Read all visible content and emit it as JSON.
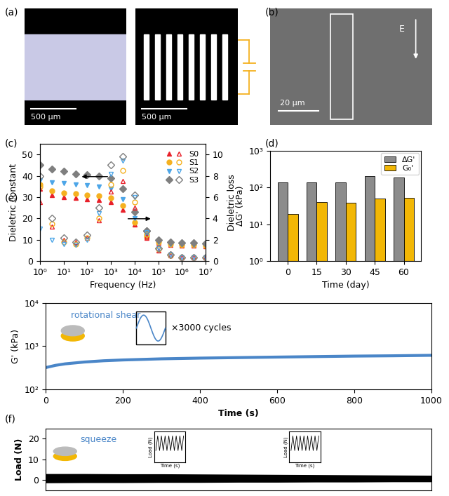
{
  "chart_data": [
    {
      "type": "image",
      "panel": "(a)",
      "scale_bars": [
        "500 μm",
        "500 μm"
      ]
    },
    {
      "type": "image",
      "panel": "(b)",
      "scale_bar": "20 μm",
      "field_label": "E"
    },
    {
      "type": "line",
      "panel": "(c)",
      "xlabel": "Frequency (Hz)",
      "ylabel": "Dieletric constant",
      "y2label": "Dieletric loss",
      "log": "x",
      "legend": "upper right",
      "x": [
        1,
        3.16,
        10,
        31.6,
        100,
        316,
        1000,
        3160,
        10000,
        31600,
        100000,
        316000,
        1000000,
        3160000,
        10000000
      ],
      "xlim": [
        1,
        10000000
      ],
      "xticks": [
        {
          "value": 1,
          "label": "10⁰"
        },
        {
          "value": 10,
          "label": "10¹"
        },
        {
          "value": 100,
          "label": "10²"
        },
        {
          "value": 1000,
          "label": "10³"
        },
        {
          "value": 10000,
          "label": "10⁴"
        },
        {
          "value": 100000,
          "label": "10⁵"
        },
        {
          "value": 1000000,
          "label": "10⁶"
        },
        {
          "value": 10000000,
          "label": "10⁷"
        }
      ],
      "ylim": [
        0,
        55
      ],
      "yticks": [
        0,
        10,
        20,
        30,
        40,
        50
      ],
      "y2lim": [
        0,
        11
      ],
      "y2ticks": [
        0,
        2,
        4,
        6,
        8,
        10
      ],
      "series": [
        {
          "name": "S0",
          "color": "#e8202a",
          "marker": "^",
          "values": [
            34,
            31,
            30,
            29.5,
            29,
            28.5,
            27.5,
            24,
            17,
            11,
            8.5,
            7.5,
            7.2,
            7.1,
            7
          ],
          "loss_values": [
            5.5,
            3.2,
            2.0,
            1.8,
            2.2,
            3.8,
            6.5,
            7.5,
            5.0,
            2.3,
            1.0,
            0.5,
            0.3,
            0.3,
            0.3
          ]
        },
        {
          "name": "S1",
          "color": "#f5b120",
          "marker": "o",
          "values": [
            36,
            33,
            32,
            31.5,
            31,
            30.5,
            29.5,
            26,
            18,
            11.5,
            8.8,
            7.8,
            7.5,
            7.4,
            7.3
          ],
          "loss_values": [
            7.0,
            3.5,
            1.8,
            1.6,
            2.2,
            4.0,
            7.2,
            8.5,
            5.5,
            2.5,
            1.1,
            0.5,
            0.3,
            0.3,
            0.3
          ]
        },
        {
          "name": "S2",
          "color": "#4da6e8",
          "marker": "v",
          "values": [
            38,
            37,
            36.5,
            36,
            35.5,
            35,
            34,
            29,
            20,
            12,
            9,
            8,
            7.8,
            7.7,
            7.6
          ],
          "loss_values": [
            3.0,
            2.0,
            1.6,
            1.5,
            2.0,
            4.5,
            8.2,
            9.4,
            6.0,
            2.7,
            1.2,
            0.6,
            0.3,
            0.3,
            0.3
          ]
        },
        {
          "name": "S3",
          "color": "#7f7f7f",
          "marker": "D",
          "values": [
            45,
            43,
            42,
            41,
            40.5,
            40,
            39,
            34,
            23,
            14,
            10,
            8.8,
            8.5,
            8.4,
            8.3
          ],
          "loss_values": [
            8.0,
            4.0,
            2.2,
            1.8,
            2.4,
            5.0,
            9.0,
            9.8,
            6.2,
            2.8,
            1.2,
            0.6,
            0.3,
            0.3,
            0.3
          ]
        }
      ]
    },
    {
      "type": "bar",
      "panel": "(d)",
      "xlabel": "Time (day)",
      "ylabel": "ΔG' (kPa)",
      "log": "y",
      "legend": "upper right",
      "categories": [
        "0",
        "15",
        "30",
        "45",
        "60"
      ],
      "ylim": [
        1,
        1000
      ],
      "yticks": [
        {
          "value": 1,
          "label": "10⁰"
        },
        {
          "value": 10,
          "label": "10¹"
        },
        {
          "value": 100,
          "label": "10²"
        },
        {
          "value": 1000,
          "label": "10³"
        }
      ],
      "series": [
        {
          "name": "ΔG'",
          "color": "#8c8c8c",
          "values": [
            140,
            135,
            140,
            200,
            190
          ]
        },
        {
          "name": "G₀'",
          "color": "#f2b705",
          "values": [
            19,
            40,
            39,
            50,
            52
          ]
        }
      ]
    },
    {
      "type": "line",
      "panel": "(e)",
      "xlabel": "Time (s)",
      "ylabel": "G' (kPa)",
      "log": "y",
      "color": "#4a86c8",
      "annotations": [
        "rotational shear",
        "×3000 cycles"
      ],
      "x": [
        0,
        25,
        50,
        100,
        150,
        200,
        300,
        400,
        500,
        600,
        700,
        800,
        900,
        1000
      ],
      "values": [
        320,
        360,
        390,
        430,
        460,
        480,
        510,
        530,
        545,
        560,
        575,
        590,
        600,
        615
      ],
      "xlim": [
        0,
        1000
      ],
      "xticks": [
        0,
        200,
        400,
        600,
        800,
        1000
      ],
      "ylim": [
        100,
        10000
      ],
      "yticks": [
        {
          "value": 100,
          "label": "10²"
        },
        {
          "value": 1000,
          "label": "10³"
        },
        {
          "value": 10000,
          "label": "10⁴"
        }
      ]
    },
    {
      "type": "area",
      "panel": "(f)",
      "ylabel": "Load (N)",
      "color": "#000000",
      "tick_labels": "y",
      "annotations": [
        "squeeze"
      ],
      "insets": [
        {
          "ylabel": "Load (N)",
          "xlabel": "Time (s)"
        },
        {
          "ylabel": "Load (N)",
          "xlabel": "Time (s)"
        }
      ],
      "x": [
        0,
        100,
        200,
        300,
        400,
        500,
        600,
        700,
        800,
        900,
        1000
      ],
      "values_max": [
        3.0,
        3.0,
        2.9,
        2.9,
        2.8,
        2.7,
        2.6,
        2.5,
        2.4,
        2.3,
        2.2
      ],
      "values_min": [
        -1.5,
        -1.4,
        -1.4,
        -1.3,
        -1.3,
        -1.2,
        -1.2,
        -1.1,
        -1.1,
        -1.0,
        -1.0
      ],
      "xlim": [
        0,
        1000
      ],
      "ylim": [
        -5,
        25
      ],
      "yticks": [
        0,
        10,
        20
      ]
    }
  ]
}
